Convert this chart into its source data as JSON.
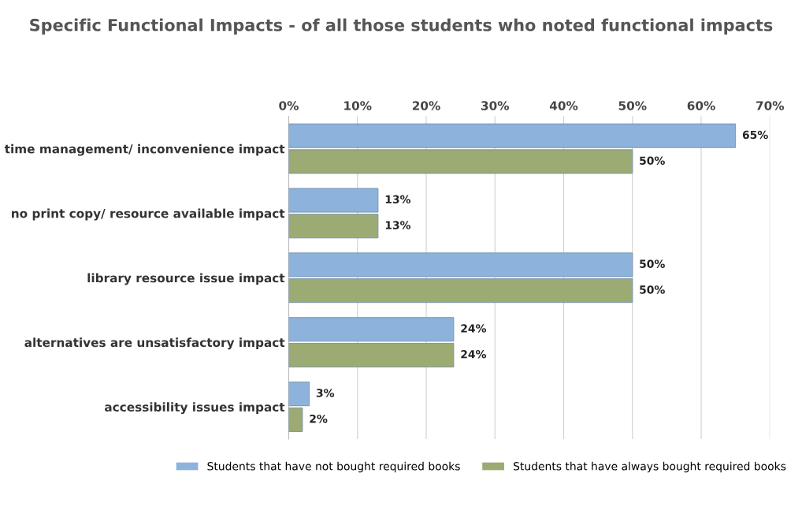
{
  "chart_data": {
    "type": "bar",
    "orientation": "horizontal",
    "title": "Specific Functional Impacts - of all those students who noted functional impacts",
    "categories": [
      "time management/ inconvenience impact",
      "no print copy/ resource available impact",
      "library resource issue impact",
      "alternatives are unsatisfactory impact",
      "accessibility issues impact"
    ],
    "series": [
      {
        "name": "Students that have not bought required books",
        "color": "#8db3dc",
        "values": [
          65,
          13,
          50,
          24,
          3
        ],
        "value_labels": [
          "65%",
          "13%",
          "50%",
          "24%",
          "3%"
        ]
      },
      {
        "name": "Students that have always bought required books",
        "color": "#9cab73",
        "values": [
          50,
          13,
          50,
          24,
          2
        ],
        "value_labels": [
          "50%",
          "13%",
          "50%",
          "24%",
          "2%"
        ]
      }
    ],
    "xlim": [
      0,
      70
    ],
    "xticks": [
      {
        "value": 0,
        "label": "0%"
      },
      {
        "value": 10,
        "label": "10%"
      },
      {
        "value": 20,
        "label": "20%"
      },
      {
        "value": 30,
        "label": "30%"
      },
      {
        "value": 40,
        "label": "40%"
      },
      {
        "value": 50,
        "label": "50%"
      },
      {
        "value": 60,
        "label": "60%"
      },
      {
        "value": 70,
        "label": "70%"
      }
    ],
    "grid": "x",
    "legend": "bottom"
  }
}
